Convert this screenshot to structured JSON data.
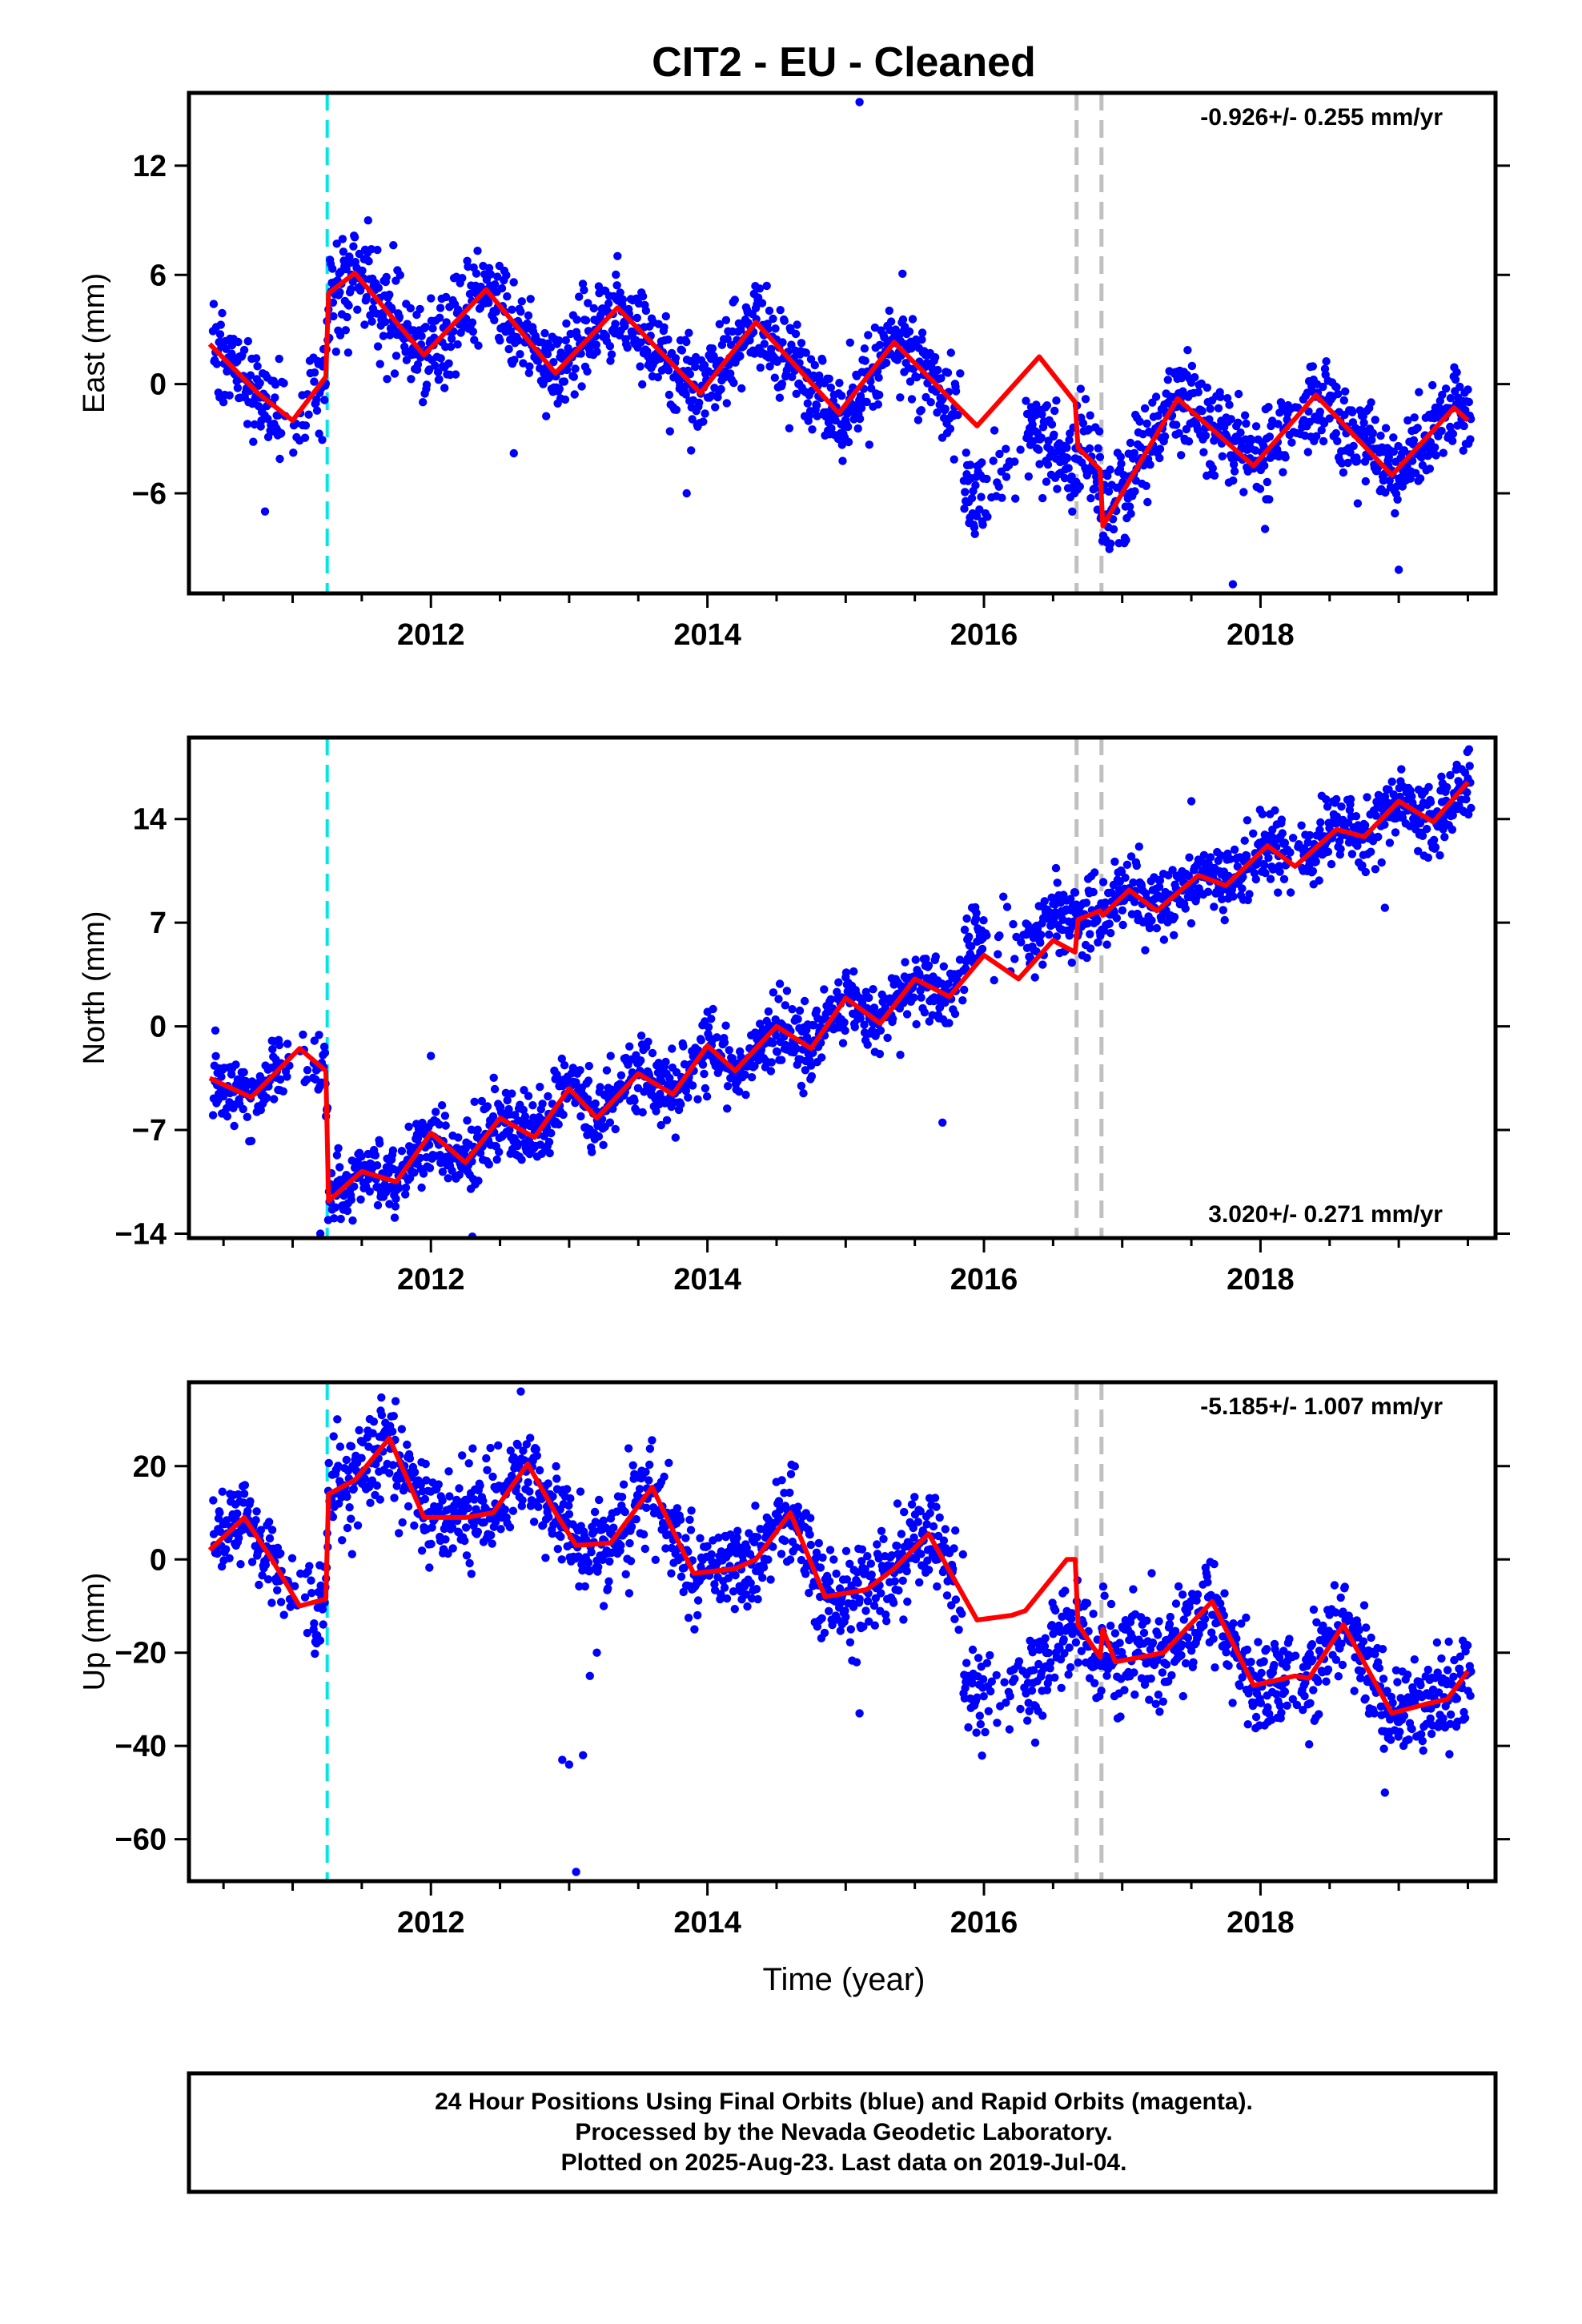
{
  "page": {
    "title": "CIT2  - EU - Cleaned",
    "xlabel": "Time (year)",
    "footer": [
      "24 Hour Positions Using Final Orbits (blue) and Rapid Orbits (magenta).",
      "Processed by the Nevada Geodetic Laboratory.",
      "Plotted on 2025-Aug-23. Last data on 2019-Jul-04."
    ]
  },
  "colors": {
    "points": "#0000ff",
    "fit": "#ff0000",
    "equipment_change": "#00e6e6",
    "earthquake": "#c0c0c0",
    "axis": "#000000"
  },
  "chart_data": [
    {
      "type": "scatter",
      "panel": "east",
      "ylabel": "East (mm)",
      "rate": "-0.926+/- 0.255 mm/yr",
      "rate_position": "top-right",
      "xlim": [
        2010.25,
        2019.7
      ],
      "ylim": [
        -11.5,
        16
      ],
      "xticks": [
        2012,
        2014,
        2016,
        2018
      ],
      "yticks": [
        -6,
        0,
        6,
        12
      ],
      "steps": [
        2011.25,
        2016.67,
        2016.85
      ],
      "offsets_at_steps": [
        3.5,
        0,
        -3.0
      ],
      "velocity": -0.926,
      "base": 2.0,
      "seasonal": {
        "annual_amp": 2.3,
        "phase": 0.4
      },
      "scatter": 1.3,
      "post_mean": [
        [
          2015.85,
          -4.5
        ]
      ],
      "outliers": [
        [
          2010.8,
          -7
        ],
        [
          2013.85,
          -6
        ],
        [
          2015.1,
          15.5
        ],
        [
          2017.8,
          -11
        ],
        [
          2019.0,
          -10.2
        ],
        [
          2012.6,
          -3.8
        ]
      ],
      "fit_points": [
        [
          2010.4,
          2.2
        ],
        [
          2010.75,
          -0.5
        ],
        [
          2011.0,
          -2.0
        ],
        [
          2011.24,
          0.4
        ],
        [
          2011.26,
          5.0
        ],
        [
          2011.45,
          6.1
        ],
        [
          2011.95,
          1.6
        ],
        [
          2012.4,
          5.2
        ],
        [
          2012.9,
          0.6
        ],
        [
          2013.35,
          4.2
        ],
        [
          2013.95,
          -0.5
        ],
        [
          2014.35,
          3.4
        ],
        [
          2014.95,
          -1.6
        ],
        [
          2015.35,
          2.3
        ],
        [
          2015.95,
          -2.3
        ],
        [
          2016.4,
          1.5
        ],
        [
          2016.66,
          -1.0
        ],
        [
          2016.68,
          -3.5
        ],
        [
          2016.84,
          -4.7
        ],
        [
          2016.86,
          -7.8
        ],
        [
          2017.4,
          -0.8
        ],
        [
          2017.95,
          -4.5
        ],
        [
          2018.4,
          -0.6
        ],
        [
          2018.95,
          -5.0
        ],
        [
          2019.4,
          -1.3
        ],
        [
          2019.5,
          -2.0
        ]
      ]
    },
    {
      "type": "scatter",
      "panel": "north",
      "ylabel": "North (mm)",
      "rate": "3.020+/- 0.271 mm/yr",
      "rate_position": "bottom-right",
      "xlim": [
        2010.25,
        2019.7
      ],
      "ylim": [
        -14.3,
        19.5
      ],
      "xticks": [
        2012,
        2014,
        2016,
        2018
      ],
      "yticks": [
        -14,
        -7,
        0,
        7,
        14
      ],
      "steps": [
        2011.25,
        2016.67,
        2016.85
      ],
      "offsets_at_steps": [
        -8.8,
        2.5,
        0.5
      ],
      "velocity": 3.02,
      "base": -3.8,
      "seasonal": {
        "annual_amp": 1.5,
        "phase": 0.2
      },
      "scatter": 1.2,
      "post_mean": [
        [
          2015.85,
          7.0
        ]
      ],
      "outliers": [
        [
          2011.2,
          -14
        ],
        [
          2012.3,
          -14.2
        ],
        [
          2013.3,
          -2
        ],
        [
          2012.0,
          -2
        ],
        [
          2017.5,
          15.2
        ],
        [
          2018.9,
          8
        ],
        [
          2015.7,
          -6.5
        ],
        [
          2011.7,
          -12
        ]
      ],
      "fit_points": [
        [
          2010.4,
          -3.5
        ],
        [
          2010.7,
          -4.8
        ],
        [
          2011.05,
          -1.5
        ],
        [
          2011.24,
          -3.0
        ],
        [
          2011.26,
          -11.8
        ],
        [
          2011.5,
          -9.8
        ],
        [
          2011.75,
          -10.5
        ],
        [
          2012.0,
          -7.2
        ],
        [
          2012.25,
          -9.2
        ],
        [
          2012.5,
          -6.2
        ],
        [
          2012.75,
          -7.5
        ],
        [
          2013.0,
          -4.2
        ],
        [
          2013.2,
          -6.2
        ],
        [
          2013.5,
          -3.2
        ],
        [
          2013.75,
          -4.6
        ],
        [
          2014.0,
          -1.3
        ],
        [
          2014.2,
          -3.0
        ],
        [
          2014.5,
          0.0
        ],
        [
          2014.75,
          -1.5
        ],
        [
          2015.0,
          1.9
        ],
        [
          2015.25,
          0.2
        ],
        [
          2015.5,
          3.2
        ],
        [
          2015.75,
          2.0
        ],
        [
          2016.0,
          4.8
        ],
        [
          2016.25,
          3.2
        ],
        [
          2016.5,
          5.8
        ],
        [
          2016.66,
          5.0
        ],
        [
          2016.68,
          7.2
        ],
        [
          2016.84,
          7.8
        ],
        [
          2016.86,
          7.5
        ],
        [
          2017.05,
          9.2
        ],
        [
          2017.25,
          7.8
        ],
        [
          2017.55,
          10.2
        ],
        [
          2017.75,
          9.5
        ],
        [
          2018.05,
          12.2
        ],
        [
          2018.25,
          10.8
        ],
        [
          2018.55,
          13.3
        ],
        [
          2018.75,
          12.8
        ],
        [
          2019.0,
          15.2
        ],
        [
          2019.25,
          13.8
        ],
        [
          2019.5,
          16.5
        ]
      ]
    },
    {
      "type": "scatter",
      "panel": "up",
      "ylabel": "Up (mm)",
      "rate": "-5.185+/- 1.007 mm/yr",
      "rate_position": "top-right",
      "xlim": [
        2010.25,
        2019.7
      ],
      "ylim": [
        -69,
        38
      ],
      "xticks": [
        2012,
        2014,
        2016,
        2018
      ],
      "yticks": [
        -60,
        -40,
        -20,
        0,
        20
      ],
      "steps": [
        2011.25,
        2016.67,
        2016.85
      ],
      "offsets_at_steps": [
        18,
        0,
        0
      ],
      "velocity": -5.185,
      "base": 5.0,
      "seasonal": {
        "annual_amp": 6.0,
        "phase": 0.5
      },
      "scatter": 5.0,
      "post_mean": [
        [
          2015.85,
          -28
        ]
      ],
      "outliers": [
        [
          2013.05,
          -67
        ],
        [
          2013.0,
          -44
        ],
        [
          2012.95,
          -43
        ],
        [
          2013.1,
          -42
        ],
        [
          2018.9,
          -50
        ],
        [
          2012.65,
          36
        ],
        [
          2015.1,
          -33
        ],
        [
          2013.2,
          -20
        ],
        [
          2013.15,
          -25
        ],
        [
          2013.25,
          -10
        ]
      ],
      "fit_points": [
        [
          2010.4,
          2.0
        ],
        [
          2010.65,
          9.0
        ],
        [
          2010.85,
          0.0
        ],
        [
          2011.05,
          -10.0
        ],
        [
          2011.24,
          -8.5
        ],
        [
          2011.26,
          14.0
        ],
        [
          2011.45,
          17.0
        ],
        [
          2011.7,
          26.0
        ],
        [
          2011.95,
          9.0
        ],
        [
          2012.25,
          9.0
        ],
        [
          2012.45,
          10.0
        ],
        [
          2012.7,
          20.5
        ],
        [
          2012.9,
          10.0
        ],
        [
          2013.05,
          3.0
        ],
        [
          2013.3,
          3.5
        ],
        [
          2013.6,
          15.5
        ],
        [
          2013.9,
          -3.0
        ],
        [
          2014.2,
          -2.0
        ],
        [
          2014.35,
          0.0
        ],
        [
          2014.6,
          10.0
        ],
        [
          2014.85,
          -8.0
        ],
        [
          2015.15,
          -6.5
        ],
        [
          2015.35,
          -2.0
        ],
        [
          2015.6,
          5.5
        ],
        [
          2015.95,
          -13.0
        ],
        [
          2016.2,
          -12.0
        ],
        [
          2016.3,
          -11.0
        ],
        [
          2016.6,
          0.0
        ],
        [
          2016.66,
          0.0
        ],
        [
          2016.68,
          -14.0
        ],
        [
          2016.84,
          -21.0
        ],
        [
          2016.86,
          -15.0
        ],
        [
          2016.95,
          -22.0
        ],
        [
          2017.3,
          -20.0
        ],
        [
          2017.65,
          -9.0
        ],
        [
          2017.95,
          -27.0
        ],
        [
          2018.25,
          -25.0
        ],
        [
          2018.35,
          -25.5
        ],
        [
          2018.6,
          -14.0
        ],
        [
          2018.95,
          -33.0
        ],
        [
          2019.2,
          -31.0
        ],
        [
          2019.35,
          -30.0
        ],
        [
          2019.5,
          -24.0
        ]
      ]
    }
  ]
}
